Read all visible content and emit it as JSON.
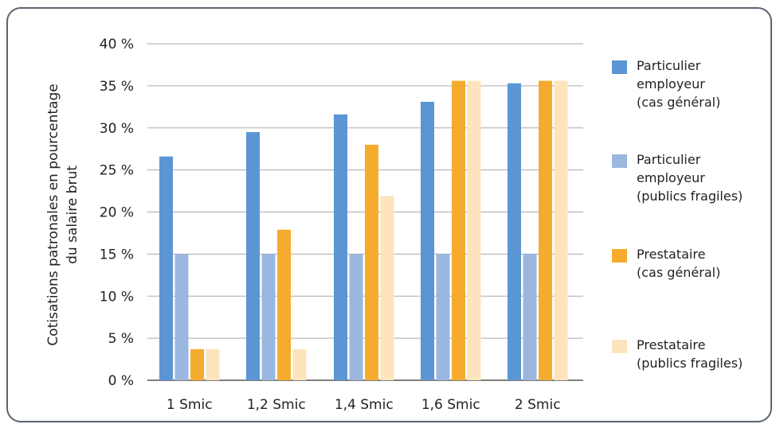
{
  "chart_data": {
    "type": "bar",
    "categories": [
      "1 Smic",
      "1,2 Smic",
      "1,4 Smic",
      "1,6 Smic",
      "2 Smic"
    ],
    "series": [
      {
        "name": "Particulier employeur (cas général)",
        "legend_lines": [
          "Particulier",
          "employeur",
          "(cas général)"
        ],
        "color": "#5b95d3",
        "values": [
          26.6,
          29.5,
          31.6,
          33.1,
          35.3
        ]
      },
      {
        "name": "Particulier employeur (publics fragiles)",
        "legend_lines": [
          "Particulier",
          "employeur",
          "(publics fragiles)"
        ],
        "color": "#9bb7e0",
        "values": [
          15,
          15,
          15,
          15,
          15
        ]
      },
      {
        "name": "Prestataire (cas général)",
        "legend_lines": [
          "Prestataire",
          "(cas général)"
        ],
        "color": "#f5ac2e",
        "values": [
          3.7,
          17.9,
          28.0,
          35.6,
          35.6
        ]
      },
      {
        "name": "Prestataire (publics fragiles)",
        "legend_lines": [
          "Prestataire",
          "(publics fragiles)"
        ],
        "color": "#fde4bd",
        "values": [
          3.7,
          3.7,
          21.9,
          35.6,
          35.6
        ]
      }
    ],
    "yticks": [
      "0 %",
      "5 %",
      "10 %",
      "15 %",
      "20 %",
      "25 %",
      "30 %",
      "35 %",
      "40 %"
    ],
    "ylim": [
      0,
      40
    ],
    "ylabel_lines": [
      "Cotisations patronales en pourcentage",
      "du salaire brut"
    ],
    "xlabel": "",
    "grid": true,
    "legend_position": "right"
  }
}
